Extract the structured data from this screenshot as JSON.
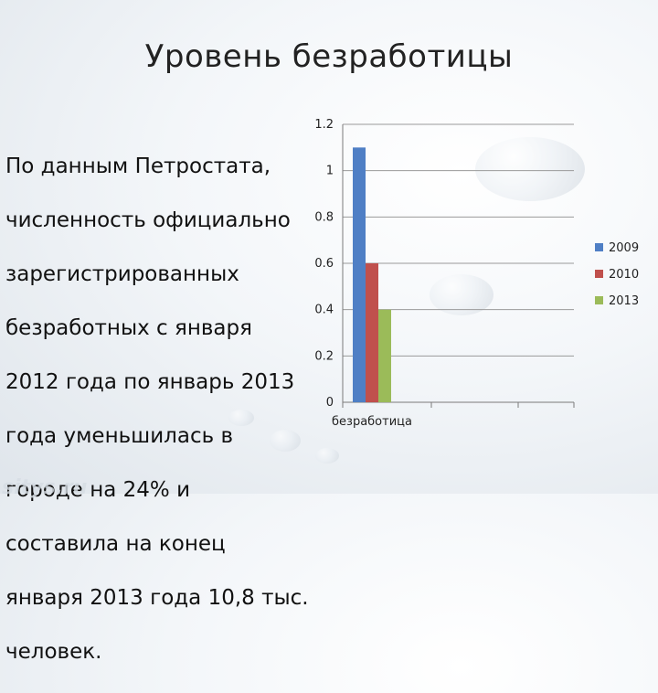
{
  "title": "Уровень безработицы",
  "text_lines": [
    "По данным Петростата,",
    "численность официально",
    "зарегистрированных",
    "безработных с января",
    "2012 года по январь 2013",
    "года уменьшилась в",
    "городе на 24% и",
    "составила на конец",
    "января 2013 года 10,8 тыс.",
    "человек."
  ],
  "watermark": "sitys.ru",
  "chart_data": {
    "type": "bar",
    "categories": [
      "безработица"
    ],
    "series": [
      {
        "name": "2009",
        "values": [
          1.1
        ],
        "color": "#4f7fc5"
      },
      {
        "name": "2010",
        "values": [
          0.6
        ],
        "color": "#c0504d"
      },
      {
        "name": "2013",
        "values": [
          0.4
        ],
        "color": "#9bbb59"
      }
    ],
    "y_ticks": [
      "0",
      "0.2",
      "0.4",
      "0.6",
      "0.8",
      "1",
      "1.2"
    ],
    "ylim": [
      0,
      1.2
    ],
    "grid": true,
    "legend": "right"
  }
}
